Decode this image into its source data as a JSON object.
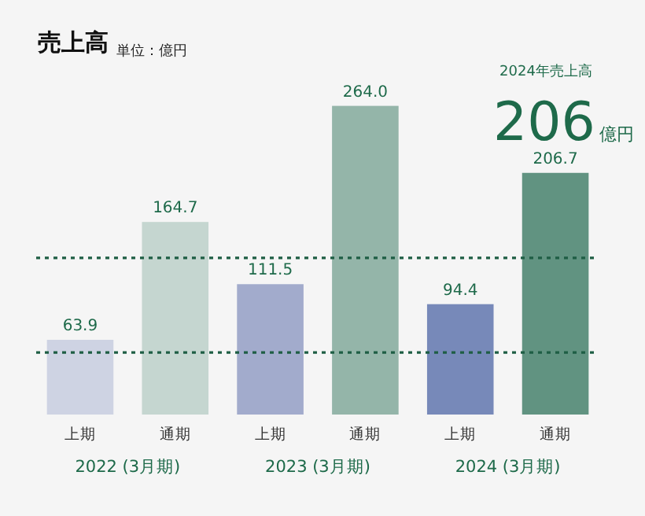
{
  "chart_data": {
    "type": "bar",
    "title": "売上高",
    "subtitle": "単位：億円",
    "categories": [
      "上期",
      "通期",
      "上期",
      "通期",
      "上期",
      "通期"
    ],
    "values": [
      63.9,
      164.7,
      111.5,
      264.0,
      94.4,
      206.7
    ],
    "colors": [
      "#ced3e3",
      "#c5d6d0",
      "#a2abcc",
      "#94b5a9",
      "#7789b9",
      "#619381"
    ],
    "ylim": [
      0,
      264
    ],
    "tick_labels": "x",
    "value_labels": [
      "63.9",
      "164.7",
      "111.5",
      "264.0",
      "94.4",
      "206.7"
    ],
    "ref_lines": [
      {
        "axis": "y",
        "value": 134,
        "color": "#1e5e44",
        "line_style": "dotted"
      },
      {
        "axis": "y",
        "value": 53,
        "color": "#1e5e44",
        "line_style": "dotted"
      }
    ],
    "annotations": [
      "2024年売上高",
      "206",
      "億円",
      "2022 (3月期)",
      "2023 (3月期)",
      "2024 (3月期)"
    ]
  }
}
